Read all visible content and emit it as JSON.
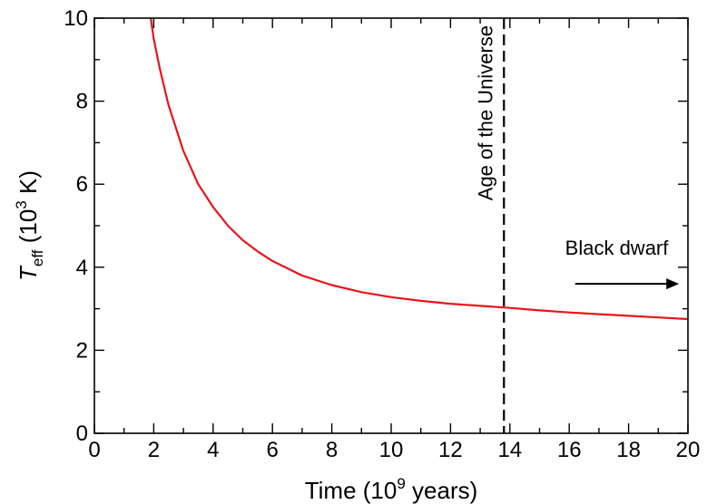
{
  "chart_data": {
    "type": "line",
    "xlabel": {
      "main": "Time (10",
      "sup": "9",
      "tail": " years)"
    },
    "ylabel": {
      "sym": "T",
      "sub": "eff",
      "open": " (10",
      "sup": "3",
      "tail": " K)"
    },
    "xlim": [
      0,
      20
    ],
    "ylim": [
      0,
      10
    ],
    "x_ticks": [
      0,
      2,
      4,
      6,
      8,
      10,
      12,
      14,
      16,
      18,
      20
    ],
    "y_ticks": [
      0,
      2,
      4,
      6,
      8,
      10
    ],
    "x_tick_labels": [
      "0",
      "2",
      "4",
      "6",
      "8",
      "10",
      "12",
      "14",
      "16",
      "18",
      "20"
    ],
    "y_tick_labels": [
      "0",
      "2",
      "4",
      "6",
      "8",
      "10"
    ],
    "series": [
      {
        "color": "#e8141a",
        "x": [
          1.9,
          2.0,
          2.2,
          2.5,
          3.0,
          3.5,
          4.0,
          4.5,
          5.0,
          5.5,
          6.0,
          7.0,
          8.0,
          9.0,
          10.0,
          11.0,
          12.0,
          13.0,
          14.0,
          15.0,
          16.0,
          17.0,
          18.0,
          19.0,
          20.0
        ],
        "y": [
          10.0,
          9.5,
          8.8,
          7.9,
          6.8,
          6.0,
          5.45,
          5.0,
          4.65,
          4.38,
          4.15,
          3.8,
          3.57,
          3.4,
          3.28,
          3.19,
          3.12,
          3.07,
          3.02,
          2.96,
          2.91,
          2.87,
          2.83,
          2.79,
          2.75
        ]
      }
    ],
    "vline": {
      "x": 13.8,
      "style": "dashed",
      "label": "Age of the Universe"
    },
    "annotation": {
      "text": "Black dwarf",
      "arrow_from_x": 16.2,
      "arrow_to_x": 19.7,
      "arrow_y": 3.6,
      "text_x": 17.6,
      "text_y": 4.3
    }
  }
}
